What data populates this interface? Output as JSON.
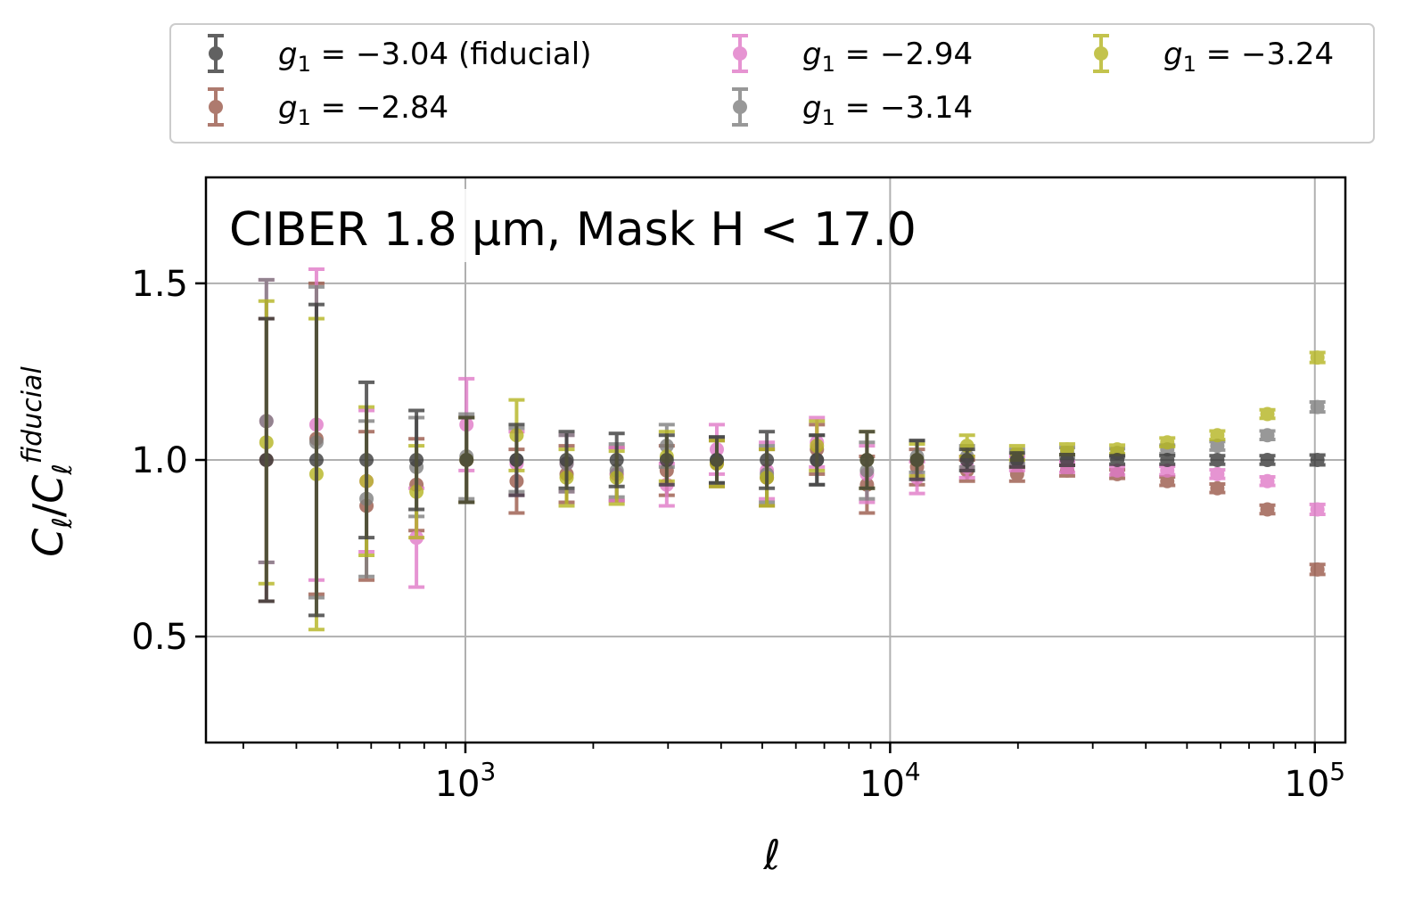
{
  "chart_data": {
    "type": "scatter",
    "errorbars": true,
    "annotation": "CIBER 1.8 μm, Mask H < 17.0",
    "xlabel": "ℓ",
    "ylabel": "C_ℓ/C_ℓ^fiducial",
    "x_scale": "log",
    "xlim": [
      245,
      118000
    ],
    "ylim": [
      0.2,
      1.8
    ],
    "grid": true,
    "legend_position": "top-outside",
    "x_ticks": [
      {
        "value": 1000,
        "label": "10^3"
      },
      {
        "value": 10000,
        "label": "10^4"
      },
      {
        "value": 100000,
        "label": "10^5"
      }
    ],
    "y_ticks": [
      {
        "value": 0.5,
        "label": "0.5"
      },
      {
        "value": 1.0,
        "label": "1.0"
      },
      {
        "value": 1.5,
        "label": "1.5"
      }
    ],
    "x": [
      340,
      446,
      585,
      767,
      1006,
      1320,
      1731,
      2271,
      2979,
      3908,
      5126,
      6724,
      8820,
      11570,
      15177,
      19908,
      26114,
      34255,
      44934,
      58942,
      77317,
      101420
    ],
    "series": [
      {
        "name": "g_1 = −3.04 (fiducial)",
        "color": "#3a3a3a",
        "values": [
          1.0,
          1.0,
          1.0,
          1.0,
          1.0,
          1.0,
          1.0,
          1.0,
          1.0,
          1.0,
          1.0,
          1.0,
          1.0,
          1.0,
          1.0,
          1.0,
          1.0,
          1.0,
          1.0,
          1.0,
          1.0,
          1.0
        ],
        "errors": [
          0.4,
          0.44,
          0.22,
          0.14,
          0.12,
          0.1,
          0.08,
          0.075,
          0.07,
          0.065,
          0.08,
          0.07,
          0.08,
          0.055,
          0.03,
          0.02,
          0.015,
          0.012,
          0.012,
          0.012,
          0.012,
          0.014
        ]
      },
      {
        "name": "g_1 = −2.84",
        "color": "#9b5a4a",
        "values": [
          1.0,
          1.06,
          0.87,
          0.93,
          1.0,
          0.94,
          0.96,
          0.96,
          0.97,
          0.99,
          0.95,
          1.03,
          0.93,
          0.98,
          0.97,
          0.96,
          0.97,
          0.96,
          0.94,
          0.92,
          0.86,
          0.69
        ],
        "errors": [
          0.4,
          0.44,
          0.21,
          0.13,
          0.12,
          0.09,
          0.08,
          0.075,
          0.07,
          0.065,
          0.08,
          0.07,
          0.08,
          0.05,
          0.03,
          0.02,
          0.015,
          0.012,
          0.012,
          0.012,
          0.012,
          0.014
        ]
      },
      {
        "name": "g_1 = −2.94",
        "color": "#e07ac8",
        "values": [
          1.11,
          1.1,
          0.94,
          0.78,
          1.1,
          0.99,
          0.99,
          0.96,
          0.93,
          1.03,
          0.97,
          1.05,
          0.96,
          0.95,
          0.98,
          0.99,
          0.98,
          0.97,
          0.97,
          0.96,
          0.94,
          0.86
        ],
        "errors": [
          0.4,
          0.44,
          0.2,
          0.14,
          0.13,
          0.09,
          0.08,
          0.075,
          0.06,
          0.07,
          0.08,
          0.07,
          0.08,
          0.045,
          0.03,
          0.02,
          0.015,
          0.012,
          0.012,
          0.012,
          0.012,
          0.014
        ]
      },
      {
        "name": "g_1 = −3.14",
        "color": "#7f7f7f",
        "values": [
          1.11,
          1.05,
          0.89,
          0.98,
          1.01,
          1.0,
          0.99,
          0.97,
          1.04,
          1.0,
          0.96,
          1.0,
          0.97,
          1.01,
          1.01,
          1.01,
          1.02,
          1.02,
          1.03,
          1.04,
          1.07,
          1.15
        ],
        "errors": [
          0.4,
          0.44,
          0.22,
          0.14,
          0.12,
          0.09,
          0.08,
          0.075,
          0.06,
          0.065,
          0.08,
          0.07,
          0.08,
          0.045,
          0.03,
          0.02,
          0.015,
          0.012,
          0.012,
          0.012,
          0.012,
          0.014
        ]
      },
      {
        "name": "g_1 = −3.24",
        "color": "#b5b521",
        "values": [
          1.05,
          0.96,
          0.94,
          0.91,
          1.0,
          1.07,
          0.95,
          0.95,
          1.01,
          0.99,
          0.95,
          1.04,
          1.0,
          1.0,
          1.04,
          1.02,
          1.03,
          1.03,
          1.05,
          1.07,
          1.13,
          1.29
        ],
        "errors": [
          0.4,
          0.44,
          0.21,
          0.13,
          0.12,
          0.1,
          0.08,
          0.075,
          0.07,
          0.065,
          0.08,
          0.07,
          0.08,
          0.045,
          0.03,
          0.02,
          0.015,
          0.012,
          0.012,
          0.012,
          0.012,
          0.014
        ]
      }
    ]
  }
}
